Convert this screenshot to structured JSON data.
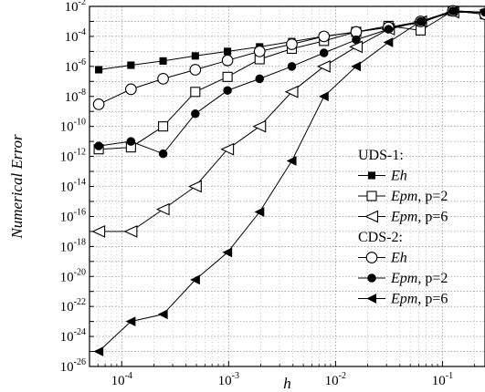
{
  "chart_data": {
    "type": "line",
    "xscale": "log",
    "yscale": "log",
    "xlabel": "h",
    "ylabel": "Numerical Error",
    "xlim": [
      5e-05,
      0.25
    ],
    "ylim": [
      1e-26,
      0.01
    ],
    "xticks": [
      {
        "value": 0.0001,
        "base": "10",
        "exp": "-4"
      },
      {
        "value": 0.001,
        "base": "10",
        "exp": "-3"
      },
      {
        "value": 0.01,
        "base": "10",
        "exp": "-2"
      },
      {
        "value": 0.1,
        "base": "10",
        "exp": "-1"
      }
    ],
    "yticks": [
      {
        "value": 1e-26,
        "base": "10",
        "exp": "-26"
      },
      {
        "value": 1e-24,
        "base": "10",
        "exp": "-24"
      },
      {
        "value": 1e-22,
        "base": "10",
        "exp": "-22"
      },
      {
        "value": 1e-20,
        "base": "10",
        "exp": "-20"
      },
      {
        "value": 1e-18,
        "base": "10",
        "exp": "-18"
      },
      {
        "value": 1e-16,
        "base": "10",
        "exp": "-16"
      },
      {
        "value": 1e-14,
        "base": "10",
        "exp": "-14"
      },
      {
        "value": 1e-12,
        "base": "10",
        "exp": "-12"
      },
      {
        "value": 1e-10,
        "base": "10",
        "exp": "-10"
      },
      {
        "value": 1e-08,
        "base": "10",
        "exp": "-8"
      },
      {
        "value": 1e-06,
        "base": "10",
        "exp": "-6"
      },
      {
        "value": 0.0001,
        "base": "10",
        "exp": "-4"
      },
      {
        "value": 0.01,
        "base": "10",
        "exp": "-2"
      }
    ],
    "grid": true,
    "legend_position": "right",
    "legend_groups": [
      {
        "title": "UDS-1:",
        "series": [
          0,
          1,
          2
        ]
      },
      {
        "title": "CDS-2:",
        "series": [
          3,
          4,
          5
        ]
      }
    ],
    "x": [
      6.1e-05,
      0.000122,
      0.000244,
      0.000488,
      0.000977,
      0.00195,
      0.0039,
      0.0078,
      0.0156,
      0.03125,
      0.0625,
      0.125,
      0.25
    ],
    "series": [
      {
        "group": "UDS-1",
        "name": "Eh",
        "name_suffix": "",
        "marker": "square",
        "fill": "filled",
        "values": [
          6e-07,
          1.2e-06,
          2.3e-06,
          5e-06,
          1e-05,
          2e-05,
          4.5e-05,
          0.0001,
          0.0002,
          0.0004,
          0.0008,
          0.005,
          0.004
        ]
      },
      {
        "group": "UDS-1",
        "name": "Epm",
        "name_suffix": ", p=2",
        "marker": "square",
        "fill": "open",
        "values": [
          3e-12,
          4e-12,
          1e-10,
          2e-08,
          2e-07,
          3e-06,
          1.5e-05,
          5e-05,
          0.0002,
          0.0005,
          0.00025,
          0.005,
          0.003
        ]
      },
      {
        "group": "UDS-1",
        "name": "Epm",
        "name_suffix": ", p=6",
        "marker": "triangle-left",
        "fill": "open",
        "values": [
          1e-17,
          1e-17,
          3e-16,
          1e-14,
          3e-12,
          1e-10,
          2e-08,
          1e-06,
          2e-05,
          0.0003,
          0.001,
          0.004,
          0.004
        ]
      },
      {
        "group": "CDS-2",
        "name": "Eh",
        "name_suffix": "",
        "marker": "circle",
        "fill": "open",
        "values": [
          3e-09,
          3e-08,
          1.5e-07,
          6e-07,
          2.5e-06,
          1e-05,
          3e-05,
          0.0001,
          0.0002,
          0.0004,
          0.001,
          0.005,
          0.003
        ]
      },
      {
        "group": "CDS-2",
        "name": "Epm",
        "name_suffix": ", p=2",
        "marker": "circle",
        "fill": "filled",
        "values": [
          5e-12,
          1e-11,
          1.5e-12,
          7e-10,
          2.5e-08,
          1.5e-07,
          1e-06,
          8e-06,
          6e-05,
          0.0003,
          0.001,
          0.005,
          0.004
        ]
      },
      {
        "group": "CDS-2",
        "name": "Epm",
        "name_suffix": ", p=6",
        "marker": "triangle-left",
        "fill": "filled",
        "values": [
          1e-25,
          1e-23,
          3e-23,
          6e-21,
          4e-19,
          2e-16,
          5e-13,
          1e-08,
          1e-06,
          4e-05,
          0.001,
          0.005,
          0.004
        ]
      }
    ]
  }
}
